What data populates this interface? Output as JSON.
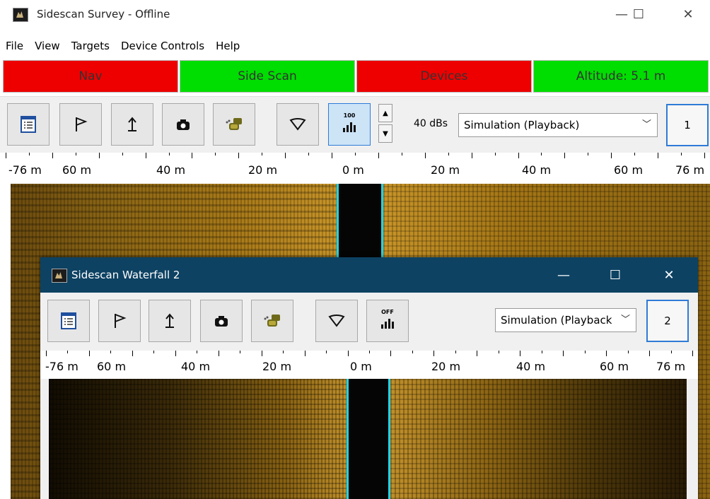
{
  "window": {
    "title": "Sidescan Survey - Offline",
    "minimize": "—",
    "maximize": "☐",
    "close": "✕"
  },
  "menu": [
    "File",
    "View",
    "Targets",
    "Device Controls",
    "Help"
  ],
  "status": [
    {
      "label": "Nav",
      "color": "#ee0000"
    },
    {
      "label": "Side Scan",
      "color": "#00dd00"
    },
    {
      "label": "Devices",
      "color": "#ee0000"
    },
    {
      "label": "Altitude: 5.1 m",
      "color": "#00dd00"
    }
  ],
  "toolbar": {
    "gain": "40 dBs",
    "mode_selected": "Simulation (Playback)",
    "channel": "1",
    "gain_icon_label": "100"
  },
  "ruler_labels": [
    "-76 m",
    "60 m",
    "40 m",
    "20 m",
    "0 m",
    "20 m",
    "40 m",
    "60 m",
    "76 m"
  ],
  "child": {
    "title": "Sidescan Waterfall 2",
    "minimize": "—",
    "maximize": "☐",
    "close": "✕",
    "mode_selected": "Simulation (Playback",
    "channel": "2",
    "gain_icon_label": "OFF"
  }
}
